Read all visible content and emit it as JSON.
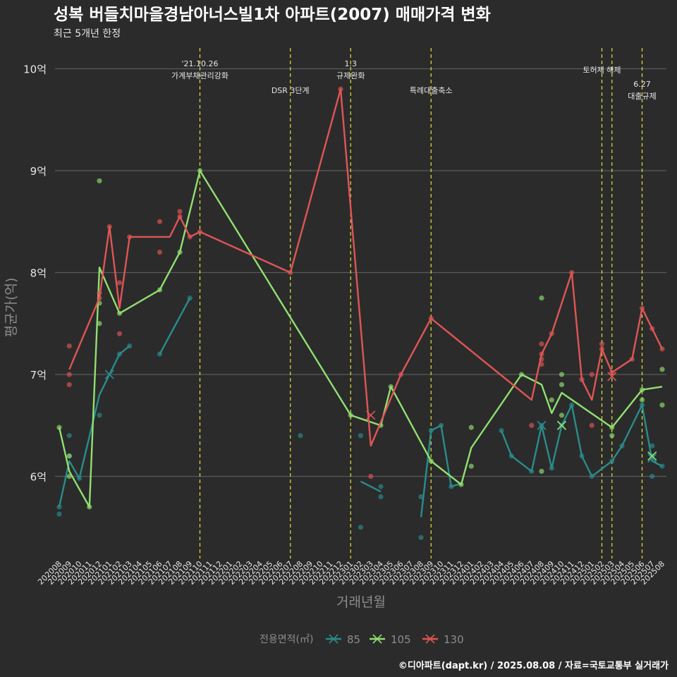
{
  "title": "성복 버들치마을경남아너스빌1차 아파트(2007) 매매가격 변화",
  "subtitle": "최근 5개년 한정",
  "footer": "©디아파트(dapt.kr) / 2025.08.08 / 자료=국토교통부 실거래가",
  "colors": {
    "background": "#2b2b2b",
    "grid": "#5a5a5a",
    "event_line": "#e2e23a",
    "text": "#e6e6e6",
    "axis_title": "#8c8c8c"
  },
  "chart_data": {
    "type": "line",
    "xlabel": "거래년월",
    "ylabel": "평균가(억)",
    "x_ticks": [
      "202008",
      "202009",
      "202010",
      "202011",
      "202012",
      "202101",
      "202102",
      "202103",
      "202104",
      "202105",
      "202106",
      "202107",
      "202108",
      "202109",
      "202110",
      "202111",
      "202112",
      "202201",
      "202202",
      "202203",
      "202204",
      "202205",
      "202206",
      "202207",
      "202208",
      "202209",
      "202210",
      "202211",
      "202212",
      "202301",
      "202302",
      "202303",
      "202304",
      "202305",
      "202306",
      "202307",
      "202308",
      "202309",
      "202310",
      "202311",
      "202312",
      "202401",
      "202402",
      "202403",
      "202404",
      "202405",
      "202406",
      "202407",
      "202408",
      "202409",
      "202410",
      "202411",
      "202412",
      "202501",
      "202502",
      "202503",
      "202504",
      "202505",
      "202506",
      "202507",
      "202508"
    ],
    "y_ticks": [
      6,
      7,
      8,
      9,
      10
    ],
    "y_tick_labels": [
      "6억",
      "7억",
      "8억",
      "9억",
      "10억"
    ],
    "ylim": [
      5.2,
      10.2
    ],
    "grid": true,
    "legend_title": "전용면적(㎡)",
    "legend_position": "bottom",
    "events": [
      {
        "x": "202110",
        "label1": "'21.10.26",
        "label2": "가계부채관리강화"
      },
      {
        "x": "202207",
        "label1": "",
        "label2": "DSR 3단계"
      },
      {
        "x": "202301",
        "label1": "1.3",
        "label2": "규제완화"
      },
      {
        "x": "202309",
        "label1": "",
        "label2": "특례대출축소"
      },
      {
        "x": "202502",
        "label1": "",
        "label2": "토허제 해제"
      },
      {
        "x": "202503",
        "label1": "",
        "label2": ""
      },
      {
        "x": "202506",
        "label1": "6.27",
        "label2": "대출규제"
      }
    ],
    "series": [
      {
        "name": "85",
        "color": "#2a8c8c",
        "lines": [
          [
            [
              "202008",
              5.7
            ],
            [
              "202009",
              6.15
            ],
            [
              "202010",
              5.98
            ],
            [
              "202012",
              6.8
            ],
            [
              "202102",
              7.2
            ],
            [
              "202103",
              7.28
            ]
          ],
          [
            [
              "202106",
              7.2
            ],
            [
              "202109",
              7.75
            ]
          ],
          [
            [
              "202302",
              5.95
            ],
            [
              "202304",
              5.85
            ]
          ],
          [
            [
              "202308",
              5.6
            ],
            [
              "202309",
              6.45
            ],
            [
              "202310",
              6.5
            ],
            [
              "202311",
              5.9
            ],
            [
              "202312",
              5.93
            ]
          ],
          [
            [
              "202404",
              6.45
            ],
            [
              "202405",
              6.2
            ],
            [
              "202407",
              6.05
            ],
            [
              "202408",
              6.5
            ],
            [
              "202409",
              6.08
            ],
            [
              "202410",
              6.5
            ],
            [
              "202411",
              6.7
            ],
            [
              "202412",
              6.2
            ],
            [
              "202501",
              6.0
            ],
            [
              "202503",
              6.15
            ],
            [
              "202504",
              6.3
            ],
            [
              "202506",
              6.7
            ],
            [
              "202507",
              6.15
            ],
            [
              "202508",
              6.1
            ]
          ]
        ],
        "points": [
          [
            "202008",
            5.7
          ],
          [
            "202008",
            5.63
          ],
          [
            "202009",
            6.4
          ],
          [
            "202009",
            6.2
          ],
          [
            "202010",
            5.98
          ],
          [
            "202012",
            6.6
          ],
          [
            "202102",
            7.2
          ],
          [
            "202103",
            7.28
          ],
          [
            "202106",
            7.2
          ],
          [
            "202109",
            7.75
          ],
          [
            "202208",
            6.4
          ],
          [
            "202302",
            5.5
          ],
          [
            "202302",
            6.4
          ],
          [
            "202304",
            5.8
          ],
          [
            "202304",
            5.9
          ],
          [
            "202308",
            5.4
          ],
          [
            "202308",
            5.8
          ],
          [
            "202309",
            6.45
          ],
          [
            "202310",
            6.5
          ],
          [
            "202311",
            5.9
          ],
          [
            "202404",
            6.45
          ],
          [
            "202405",
            6.2
          ],
          [
            "202407",
            6.05
          ],
          [
            "202408",
            6.5
          ],
          [
            "202409",
            6.08
          ],
          [
            "202410",
            6.5
          ],
          [
            "202411",
            6.7
          ],
          [
            "202412",
            6.2
          ],
          [
            "202501",
            6.0
          ],
          [
            "202503",
            6.15
          ],
          [
            "202504",
            6.3
          ],
          [
            "202506",
            6.7
          ],
          [
            "202507",
            6.0
          ],
          [
            "202507",
            6.2
          ],
          [
            "202507",
            6.3
          ],
          [
            "202508",
            6.1
          ]
        ],
        "crosses": [
          [
            "202101",
            7.0
          ],
          [
            "202408",
            6.5
          ],
          [
            "202410",
            6.5
          ],
          [
            "202507",
            6.18
          ]
        ]
      },
      {
        "name": "105",
        "color": "#90e070",
        "lines": [
          [
            [
              "202008",
              6.48
            ],
            [
              "202009",
              6.05
            ],
            [
              "202011",
              5.7
            ],
            [
              "202012",
              8.05
            ],
            [
              "202102",
              7.6
            ],
            [
              "202106",
              7.83
            ],
            [
              "202108",
              8.2
            ],
            [
              "202110",
              9.0
            ],
            [
              "202301",
              6.6
            ],
            [
              "202304",
              6.5
            ],
            [
              "202305",
              6.88
            ],
            [
              "202309",
              6.15
            ],
            [
              "202312",
              5.92
            ],
            [
              "202401",
              6.28
            ],
            [
              "202406",
              7.0
            ],
            [
              "202408",
              6.9
            ],
            [
              "202409",
              6.62
            ],
            [
              "202410",
              6.82
            ],
            [
              "202503",
              6.48
            ],
            [
              "202506",
              6.85
            ],
            [
              "202508",
              6.88
            ]
          ]
        ],
        "points": [
          [
            "202008",
            6.48
          ],
          [
            "202009",
            6.2
          ],
          [
            "202009",
            6.0
          ],
          [
            "202011",
            5.7
          ],
          [
            "202012",
            8.9
          ],
          [
            "202012",
            7.5
          ],
          [
            "202012",
            7.7
          ],
          [
            "202102",
            7.6
          ],
          [
            "202106",
            7.83
          ],
          [
            "202108",
            8.2
          ],
          [
            "202110",
            9.0
          ],
          [
            "202301",
            6.6
          ],
          [
            "202304",
            6.5
          ],
          [
            "202305",
            6.88
          ],
          [
            "202309",
            6.15
          ],
          [
            "202312",
            5.92
          ],
          [
            "202401",
            6.48
          ],
          [
            "202401",
            6.1
          ],
          [
            "202406",
            7.0
          ],
          [
            "202408",
            7.75
          ],
          [
            "202408",
            6.05
          ],
          [
            "202409",
            6.75
          ],
          [
            "202410",
            7.0
          ],
          [
            "202410",
            6.9
          ],
          [
            "202410",
            6.6
          ],
          [
            "202503",
            6.48
          ],
          [
            "202503",
            6.4
          ],
          [
            "202506",
            6.85
          ],
          [
            "202506",
            6.75
          ],
          [
            "202508",
            7.05
          ],
          [
            "202508",
            6.7
          ]
        ],
        "crosses": [
          [
            "202410",
            6.5
          ],
          [
            "202507",
            6.2
          ]
        ]
      },
      {
        "name": "130",
        "color": "#e05555",
        "lines": [
          [
            [
              "202009",
              7.05
            ],
            [
              "202012",
              7.75
            ],
            [
              "202101",
              8.45
            ],
            [
              "202102",
              7.65
            ],
            [
              "202103",
              8.35
            ],
            [
              "202107",
              8.35
            ],
            [
              "202108",
              8.55
            ],
            [
              "202109",
              8.35
            ],
            [
              "202110",
              8.4
            ],
            [
              "202207",
              8.0
            ],
            [
              "202212",
              9.8
            ],
            [
              "202303",
              6.3
            ],
            [
              "202306",
              7.0
            ],
            [
              "202309",
              7.55
            ],
            [
              "202407",
              6.75
            ],
            [
              "202408",
              7.2
            ],
            [
              "202409",
              7.4
            ],
            [
              "202411",
              8.0
            ],
            [
              "202412",
              6.95
            ],
            [
              "202501",
              6.75
            ],
            [
              "202502",
              7.25
            ],
            [
              "202503",
              7.02
            ],
            [
              "202505",
              7.15
            ],
            [
              "202506",
              7.65
            ],
            [
              "202507",
              7.45
            ],
            [
              "202508",
              7.25
            ]
          ]
        ],
        "points": [
          [
            "202009",
            7.28
          ],
          [
            "202009",
            7.0
          ],
          [
            "202009",
            6.9
          ],
          [
            "202012",
            7.75
          ],
          [
            "202012",
            7.8
          ],
          [
            "202101",
            8.45
          ],
          [
            "202102",
            7.9
          ],
          [
            "202102",
            7.4
          ],
          [
            "202103",
            8.35
          ],
          [
            "202106",
            8.5
          ],
          [
            "202106",
            8.2
          ],
          [
            "202108",
            8.55
          ],
          [
            "202108",
            8.6
          ],
          [
            "202109",
            8.35
          ],
          [
            "202110",
            8.4
          ],
          [
            "202207",
            8.0
          ],
          [
            "202212",
            9.8
          ],
          [
            "202303",
            6.0
          ],
          [
            "202306",
            7.0
          ],
          [
            "202309",
            7.55
          ],
          [
            "202407",
            6.5
          ],
          [
            "202408",
            7.3
          ],
          [
            "202408",
            7.15
          ],
          [
            "202408",
            7.1
          ],
          [
            "202408",
            7.2
          ],
          [
            "202409",
            7.4
          ],
          [
            "202411",
            8.0
          ],
          [
            "202412",
            6.95
          ],
          [
            "202501",
            6.5
          ],
          [
            "202501",
            7.0
          ],
          [
            "202502",
            7.25
          ],
          [
            "202502",
            7.3
          ],
          [
            "202503",
            7.02
          ],
          [
            "202505",
            7.15
          ],
          [
            "202506",
            7.65
          ],
          [
            "202507",
            7.45
          ],
          [
            "202508",
            7.25
          ]
        ],
        "crosses": [
          [
            "202303",
            6.6
          ],
          [
            "202503",
            6.98
          ]
        ]
      }
    ]
  }
}
